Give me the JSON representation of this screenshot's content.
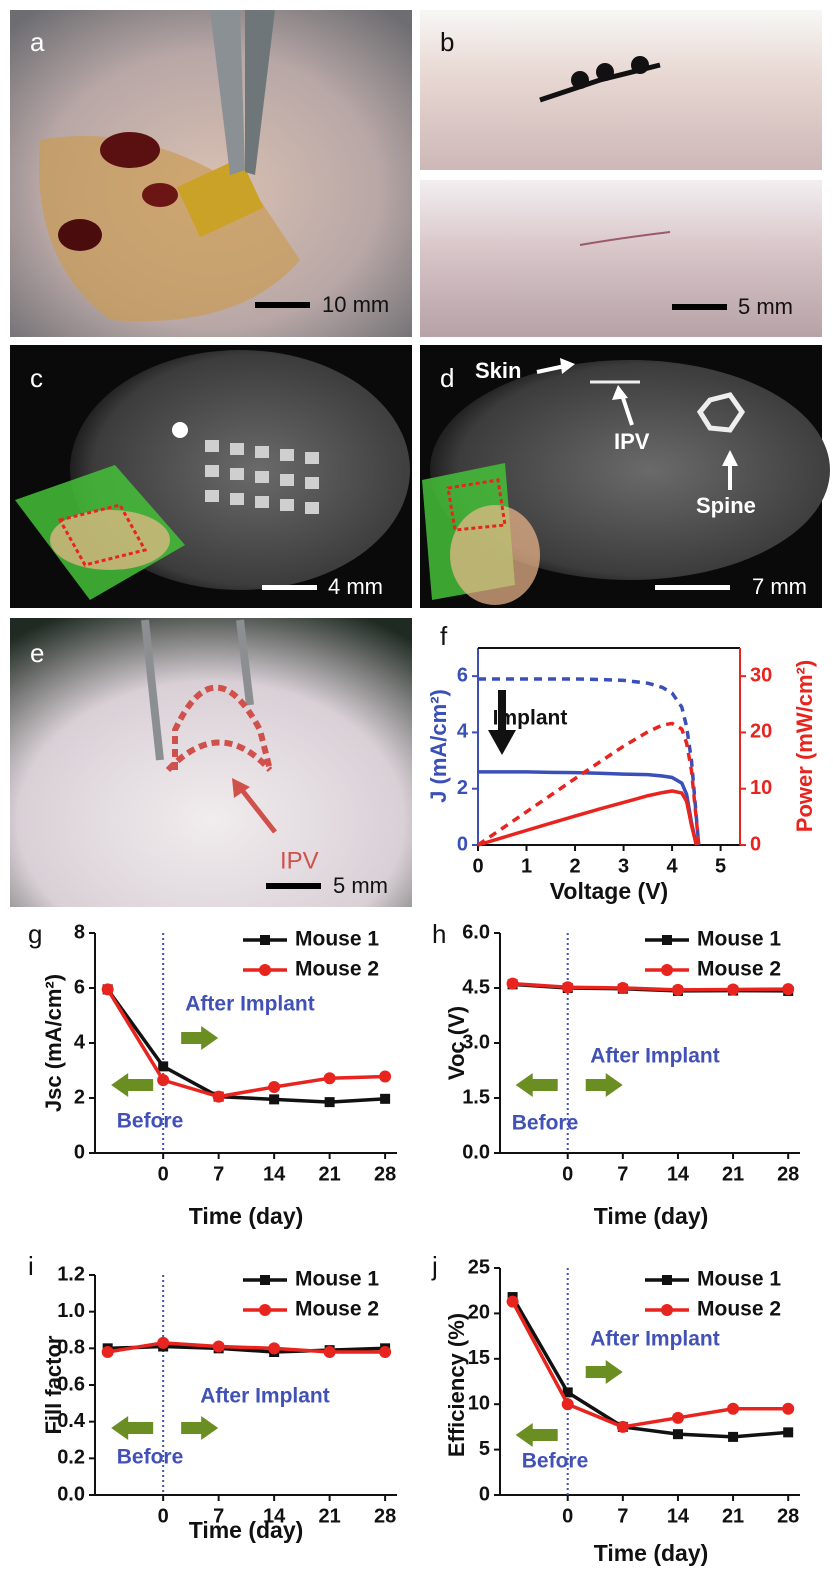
{
  "panels": {
    "a": {
      "letter": "a",
      "scale": "10 mm"
    },
    "b": {
      "letter": "b",
      "scale": "5 mm"
    },
    "c": {
      "letter": "c",
      "scale": "4 mm"
    },
    "d": {
      "letter": "d",
      "scale": "7 mm",
      "labels": [
        "Skin",
        "IPV",
        "Spine"
      ]
    },
    "e": {
      "letter": "e",
      "scale": "5 mm",
      "label": "IPV"
    }
  },
  "chart_data": [
    {
      "type": "line",
      "panel": "f",
      "xlabel": "Voltage (V)",
      "ylabel": "J (mA/cm²)",
      "y2label": "Power (mW/cm²)",
      "annotations": [
        "Implant"
      ],
      "x": [
        0,
        0.5,
        1,
        1.5,
        2,
        2.5,
        3,
        3.5,
        3.8,
        4,
        4.2,
        4.3,
        4.4,
        4.5,
        4.55
      ],
      "xlim": [
        0,
        5.4
      ],
      "xticks": [
        0,
        1,
        2,
        3,
        4,
        5
      ],
      "ylim": [
        0,
        7
      ],
      "yticks": [
        0,
        2,
        4,
        6
      ],
      "y2lim": [
        0,
        35
      ],
      "y2ticks": [
        0,
        10,
        20,
        30
      ],
      "series": [
        {
          "color": "#3a4fb8",
          "linestyle": "dashed",
          "values": [
            5.9,
            5.9,
            5.9,
            5.9,
            5.9,
            5.88,
            5.85,
            5.75,
            5.6,
            5.4,
            4.9,
            4.2,
            3,
            1,
            0
          ]
        },
        {
          "color": "#3a4fb8",
          "linestyle": "solid",
          "values": [
            2.6,
            2.6,
            2.6,
            2.58,
            2.57,
            2.55,
            2.52,
            2.5,
            2.45,
            2.4,
            2.2,
            1.8,
            0.8,
            0,
            null
          ]
        },
        {
          "color": "#e8241e",
          "linestyle": "dashed",
          "axis": "y2",
          "values": [
            0,
            2.95,
            5.9,
            8.85,
            11.8,
            14.7,
            17.55,
            20.1,
            21.3,
            21.6,
            20.6,
            18.1,
            13.2,
            4.5,
            0
          ]
        },
        {
          "color": "#e8241e",
          "linestyle": "solid",
          "axis": "y2",
          "values": [
            0,
            1.3,
            2.6,
            3.87,
            5.14,
            6.38,
            7.56,
            8.75,
            9.31,
            9.6,
            9.24,
            7.74,
            3.52,
            0,
            null
          ]
        }
      ]
    },
    {
      "type": "line",
      "panel": "g",
      "xlabel": "Time (day)",
      "ylabel": "Jsc (mA/cm²)",
      "annotations": [
        "After Implant",
        "Before"
      ],
      "x": [
        -7,
        0,
        7,
        14,
        21,
        28
      ],
      "xlim": [
        -8.6,
        29.5
      ],
      "xticks": [
        0,
        7,
        14,
        21,
        28
      ],
      "ylim": [
        0,
        8
      ],
      "yticks": [
        0,
        2,
        4,
        6,
        8
      ],
      "vline": 0,
      "legend": "upper right",
      "series": [
        {
          "name": "Mouse 1",
          "color": "#111111",
          "marker": "square",
          "values": [
            5.95,
            3.15,
            2.05,
            1.95,
            1.85,
            1.97
          ]
        },
        {
          "name": "Mouse 2",
          "color": "#e8241e",
          "marker": "circle",
          "values": [
            5.95,
            2.65,
            2.05,
            2.4,
            2.72,
            2.78
          ]
        }
      ]
    },
    {
      "type": "line",
      "panel": "h",
      "xlabel": "Time (day)",
      "ylabel": "Voc (V)",
      "annotations": [
        "After Implant",
        "Before"
      ],
      "x": [
        -7,
        0,
        7,
        14,
        21,
        28
      ],
      "xlim": [
        -8.6,
        29.5
      ],
      "xticks": [
        0,
        7,
        14,
        21,
        28
      ],
      "ylim": [
        0,
        6
      ],
      "yticks": [
        {
          "value": 0,
          "label": "0.0"
        },
        1.5,
        {
          "value": 3,
          "label": "3.0"
        },
        4.5,
        {
          "value": 6,
          "label": "6.0"
        }
      ],
      "vline": 0,
      "legend": "upper right",
      "series": [
        {
          "name": "Mouse 1",
          "color": "#111111",
          "marker": "square",
          "values": [
            4.6,
            4.5,
            4.48,
            4.42,
            4.43,
            4.42
          ]
        },
        {
          "name": "Mouse 2",
          "color": "#e8241e",
          "marker": "circle",
          "values": [
            4.62,
            4.52,
            4.5,
            4.45,
            4.46,
            4.47
          ]
        }
      ]
    },
    {
      "type": "line",
      "panel": "i",
      "xlabel": "Time (day)",
      "ylabel": "Fill factor",
      "annotations": [
        "After Implant",
        "Before"
      ],
      "x": [
        -7,
        0,
        7,
        14,
        21,
        28
      ],
      "xlim": [
        -8.6,
        29.5
      ],
      "xticks": [
        0,
        7,
        14,
        21,
        28
      ],
      "ylim": [
        0,
        1.2
      ],
      "yticks": [
        {
          "value": 0,
          "label": "0.0"
        },
        0.2,
        0.4,
        0.6,
        0.8,
        {
          "value": 1,
          "label": "1.0"
        },
        1.2
      ],
      "vline": 0,
      "legend": "upper right",
      "series": [
        {
          "name": "Mouse 1",
          "color": "#111111",
          "marker": "square",
          "values": [
            0.8,
            0.81,
            0.8,
            0.78,
            0.79,
            0.8
          ]
        },
        {
          "name": "Mouse 2",
          "color": "#e8241e",
          "marker": "circle",
          "values": [
            0.78,
            0.83,
            0.81,
            0.8,
            0.78,
            0.78
          ]
        }
      ]
    },
    {
      "type": "line",
      "panel": "j",
      "xlabel": "Time (day)",
      "ylabel": "Efficiency (%)",
      "annotations": [
        "After Implant",
        "Before"
      ],
      "x": [
        -7,
        0,
        7,
        14,
        21,
        28
      ],
      "xlim": [
        -8.6,
        29.5
      ],
      "xticks": [
        0,
        7,
        14,
        21,
        28
      ],
      "ylim": [
        0,
        25
      ],
      "yticks": [
        0,
        5,
        10,
        15,
        20,
        25
      ],
      "vline": 0,
      "legend": "upper right",
      "series": [
        {
          "name": "Mouse 1",
          "color": "#111111",
          "marker": "square",
          "values": [
            21.8,
            11.3,
            7.5,
            6.7,
            6.4,
            6.9
          ]
        },
        {
          "name": "Mouse 2",
          "color": "#e8241e",
          "marker": "circle",
          "values": [
            21.3,
            10,
            7.5,
            8.5,
            9.5,
            9.5
          ]
        }
      ]
    }
  ]
}
